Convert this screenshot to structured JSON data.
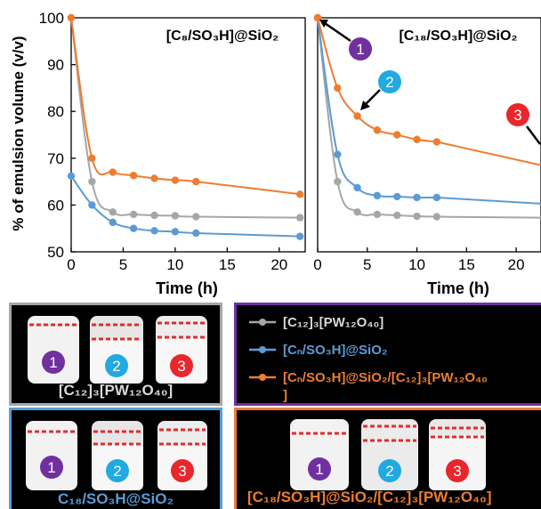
{
  "colors": {
    "gray": "#a6a6a6",
    "blue": "#5b9bd5",
    "orange": "#ed7d31",
    "purple": "#7030a0",
    "cyan": "#21a9e1",
    "red": "#e8262b",
    "jar_liquid": "#f2f2f2",
    "dash": "#e52b2b"
  },
  "chart_data": [
    {
      "type": "line",
      "title": "[C₈/SO₃H]@SiO₂",
      "xlabel": "Time (h)",
      "ylabel": "% of emulsion volume (v/v)",
      "xlim": [
        0,
        22.5
      ],
      "ylim": [
        50,
        100
      ],
      "xticks": [
        0,
        5,
        10,
        15,
        20
      ],
      "yticks": [
        50,
        60,
        70,
        80,
        90,
        100
      ],
      "grid": false,
      "series": [
        {
          "name": "[C₁₂]₃[PW₁₂O₄₀]",
          "color": "gray",
          "x": [
            0,
            2,
            4,
            6,
            8,
            10,
            12,
            22
          ],
          "y": [
            100,
            65,
            58.5,
            58,
            57.8,
            57.7,
            57.5,
            57.3
          ]
        },
        {
          "name": "[Cₙ/SO₃H]@SiO₂",
          "color": "blue",
          "x": [
            0,
            2,
            4,
            6,
            8,
            10,
            12,
            22
          ],
          "y": [
            66.2,
            60,
            56.3,
            55,
            54.5,
            54.3,
            54,
            53.3
          ]
        },
        {
          "name": "[Cₙ/SO₃H]@SiO₂/[C₁₂]₃[PW₁₂O₄₀]",
          "color": "orange",
          "x": [
            0,
            2,
            4,
            6,
            8,
            10,
            12,
            22
          ],
          "y": [
            100,
            70,
            67,
            66.3,
            65.7,
            65.3,
            65,
            62.3
          ]
        }
      ]
    },
    {
      "type": "line",
      "title": "[C₁₈/SO₃H]@SiO₂",
      "xlabel": "Time (h)",
      "ylabel": "",
      "xlim": [
        0,
        22.5
      ],
      "ylim": [
        50,
        100
      ],
      "xticks": [
        0,
        5,
        10,
        15,
        20
      ],
      "yticks": [],
      "grid": false,
      "series": [
        {
          "name": "[C₁₂]₃[PW₁₂O₄₀]",
          "color": "gray",
          "x": [
            0,
            2,
            4,
            6,
            8,
            10,
            12
          ],
          "y": [
            100,
            65,
            58.5,
            58,
            57.8,
            57.6,
            57.5
          ]
        },
        {
          "name": "[Cₙ/SO₃H]@SiO₂",
          "color": "blue",
          "x": [
            0,
            2,
            4,
            6,
            8,
            10,
            12
          ],
          "y": [
            100,
            70.8,
            63.7,
            62,
            61.8,
            61.6,
            61.6
          ]
        },
        {
          "name": "[Cₙ/SO₃H]@SiO₂/[C₁₂]₃[PW₁₂O₄₀]",
          "color": "orange",
          "x": [
            0,
            2,
            4,
            6,
            8,
            10,
            12
          ],
          "y": [
            100,
            85,
            79,
            76,
            75,
            74,
            73.5
          ]
        }
      ],
      "annotations": [
        {
          "label": "1",
          "color": "purple"
        },
        {
          "label": "2",
          "color": "cyan"
        },
        {
          "label": "3",
          "color": "red"
        }
      ]
    }
  ],
  "legend": {
    "items": [
      {
        "text": "[C₁₂]₃[PW₁₂O₄₀]",
        "color": "gray"
      },
      {
        "text": "[Cₙ/SO₃H]@SiO₂",
        "color": "blue"
      },
      {
        "text": "[Cₙ/SO₃H]@SiO₂/[C₁₂]₃[PW₁₂O₄₀",
        "color": "orange"
      }
    ],
    "wrap_tail": "]"
  },
  "photo_panels": [
    {
      "caption": "[C₁₂]₃[PW₁₂O₄₀]",
      "caption_color": "#d9d9d9",
      "border": "#a6a6a6",
      "jars": [
        {
          "label": "1",
          "color": "purple"
        },
        {
          "label": "2",
          "color": "cyan"
        },
        {
          "label": "3",
          "color": "red"
        }
      ]
    },
    {
      "caption": "C₁₈/SO₃H@SiO₂",
      "caption_color": "#5b9bd5",
      "border": "#5b9bd5",
      "jars": [
        {
          "label": "1",
          "color": "purple"
        },
        {
          "label": "2",
          "color": "cyan"
        },
        {
          "label": "3",
          "color": "red"
        }
      ]
    },
    {
      "caption": "[C₁₈/SO₃H]@SiO₂/[C₁₂]₃[PW₁₂O₄₀]",
      "caption_color": "#ed7d31",
      "border": "#ed7d31",
      "jars": [
        {
          "label": "1",
          "color": "purple"
        },
        {
          "label": "2",
          "color": "cyan"
        },
        {
          "label": "3",
          "color": "red"
        }
      ]
    }
  ]
}
